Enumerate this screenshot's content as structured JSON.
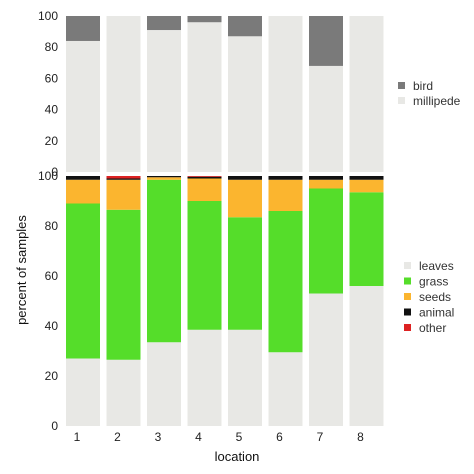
{
  "chart_data": [
    {
      "type": "bar",
      "stacked": true,
      "categories": [
        "1",
        "2",
        "3",
        "4",
        "5",
        "6",
        "7",
        "8"
      ],
      "ylim": [
        0,
        100
      ],
      "yticks": [
        0,
        20,
        40,
        60,
        80,
        100
      ],
      "series": [
        {
          "name": "millipede",
          "color": "#e8e8e5",
          "values": [
            84,
            100,
            91,
            96,
            87,
            100,
            68,
            100
          ]
        },
        {
          "name": "bird",
          "color": "#7a7a7a",
          "values": [
            16,
            0,
            9,
            4,
            13,
            0,
            32,
            0
          ]
        }
      ],
      "legend": {
        "position": "right",
        "order": [
          "bird",
          "millipede"
        ]
      }
    },
    {
      "type": "bar",
      "stacked": true,
      "categories": [
        "1",
        "2",
        "3",
        "4",
        "5",
        "6",
        "7",
        "8"
      ],
      "ylim": [
        0,
        100
      ],
      "yticks": [
        0,
        20,
        40,
        60,
        80,
        100
      ],
      "series": [
        {
          "name": "leaves",
          "color": "#e8e8e5",
          "values": [
            27,
            26.5,
            33.5,
            38.5,
            38.5,
            29.5,
            53,
            56
          ]
        },
        {
          "name": "grass",
          "color": "#55dd2a",
          "values": [
            62,
            60,
            65,
            51.5,
            45,
            56.5,
            42,
            37.5
          ]
        },
        {
          "name": "seeds",
          "color": "#fbb52f",
          "values": [
            9.5,
            12,
            1,
            9,
            15,
            12.5,
            3.5,
            5
          ]
        },
        {
          "name": "animal",
          "color": "#111111",
          "values": [
            1.5,
            0.5,
            0.5,
            0.7,
            1.5,
            1.5,
            1.5,
            1.5
          ]
        },
        {
          "name": "other",
          "color": "#dd2222",
          "values": [
            0,
            1,
            0,
            0.3,
            0,
            0,
            0,
            0
          ]
        }
      ],
      "legend": {
        "position": "right",
        "order": [
          "leaves",
          "grass",
          "seeds",
          "animal",
          "other"
        ]
      }
    }
  ],
  "ylabel": "percent of samples",
  "xlabel": "location"
}
